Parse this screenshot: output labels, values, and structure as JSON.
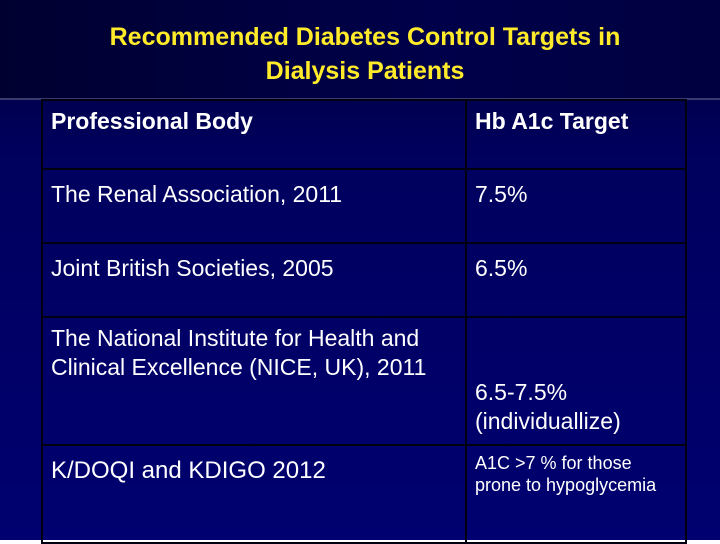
{
  "header": {
    "title": "Recommended Diabetes Control Targets in Dialysis Patients"
  },
  "table": {
    "header": [
      "Professional Body",
      "Hb A1c Target"
    ],
    "rows": [
      [
        "The Renal Association, 2011",
        "7.5%"
      ],
      [
        "Joint British Societies, 2005",
        "6.5%"
      ],
      [
        "The National Institute for Health and Clinical Excellence (NICE, UK), 2011",
        "6.5-7.5% (individuallize)"
      ],
      [
        "K/DOQI and KDIGO 2012",
        "A1C >7 % for those prone to hypoglycemia"
      ]
    ]
  }
}
